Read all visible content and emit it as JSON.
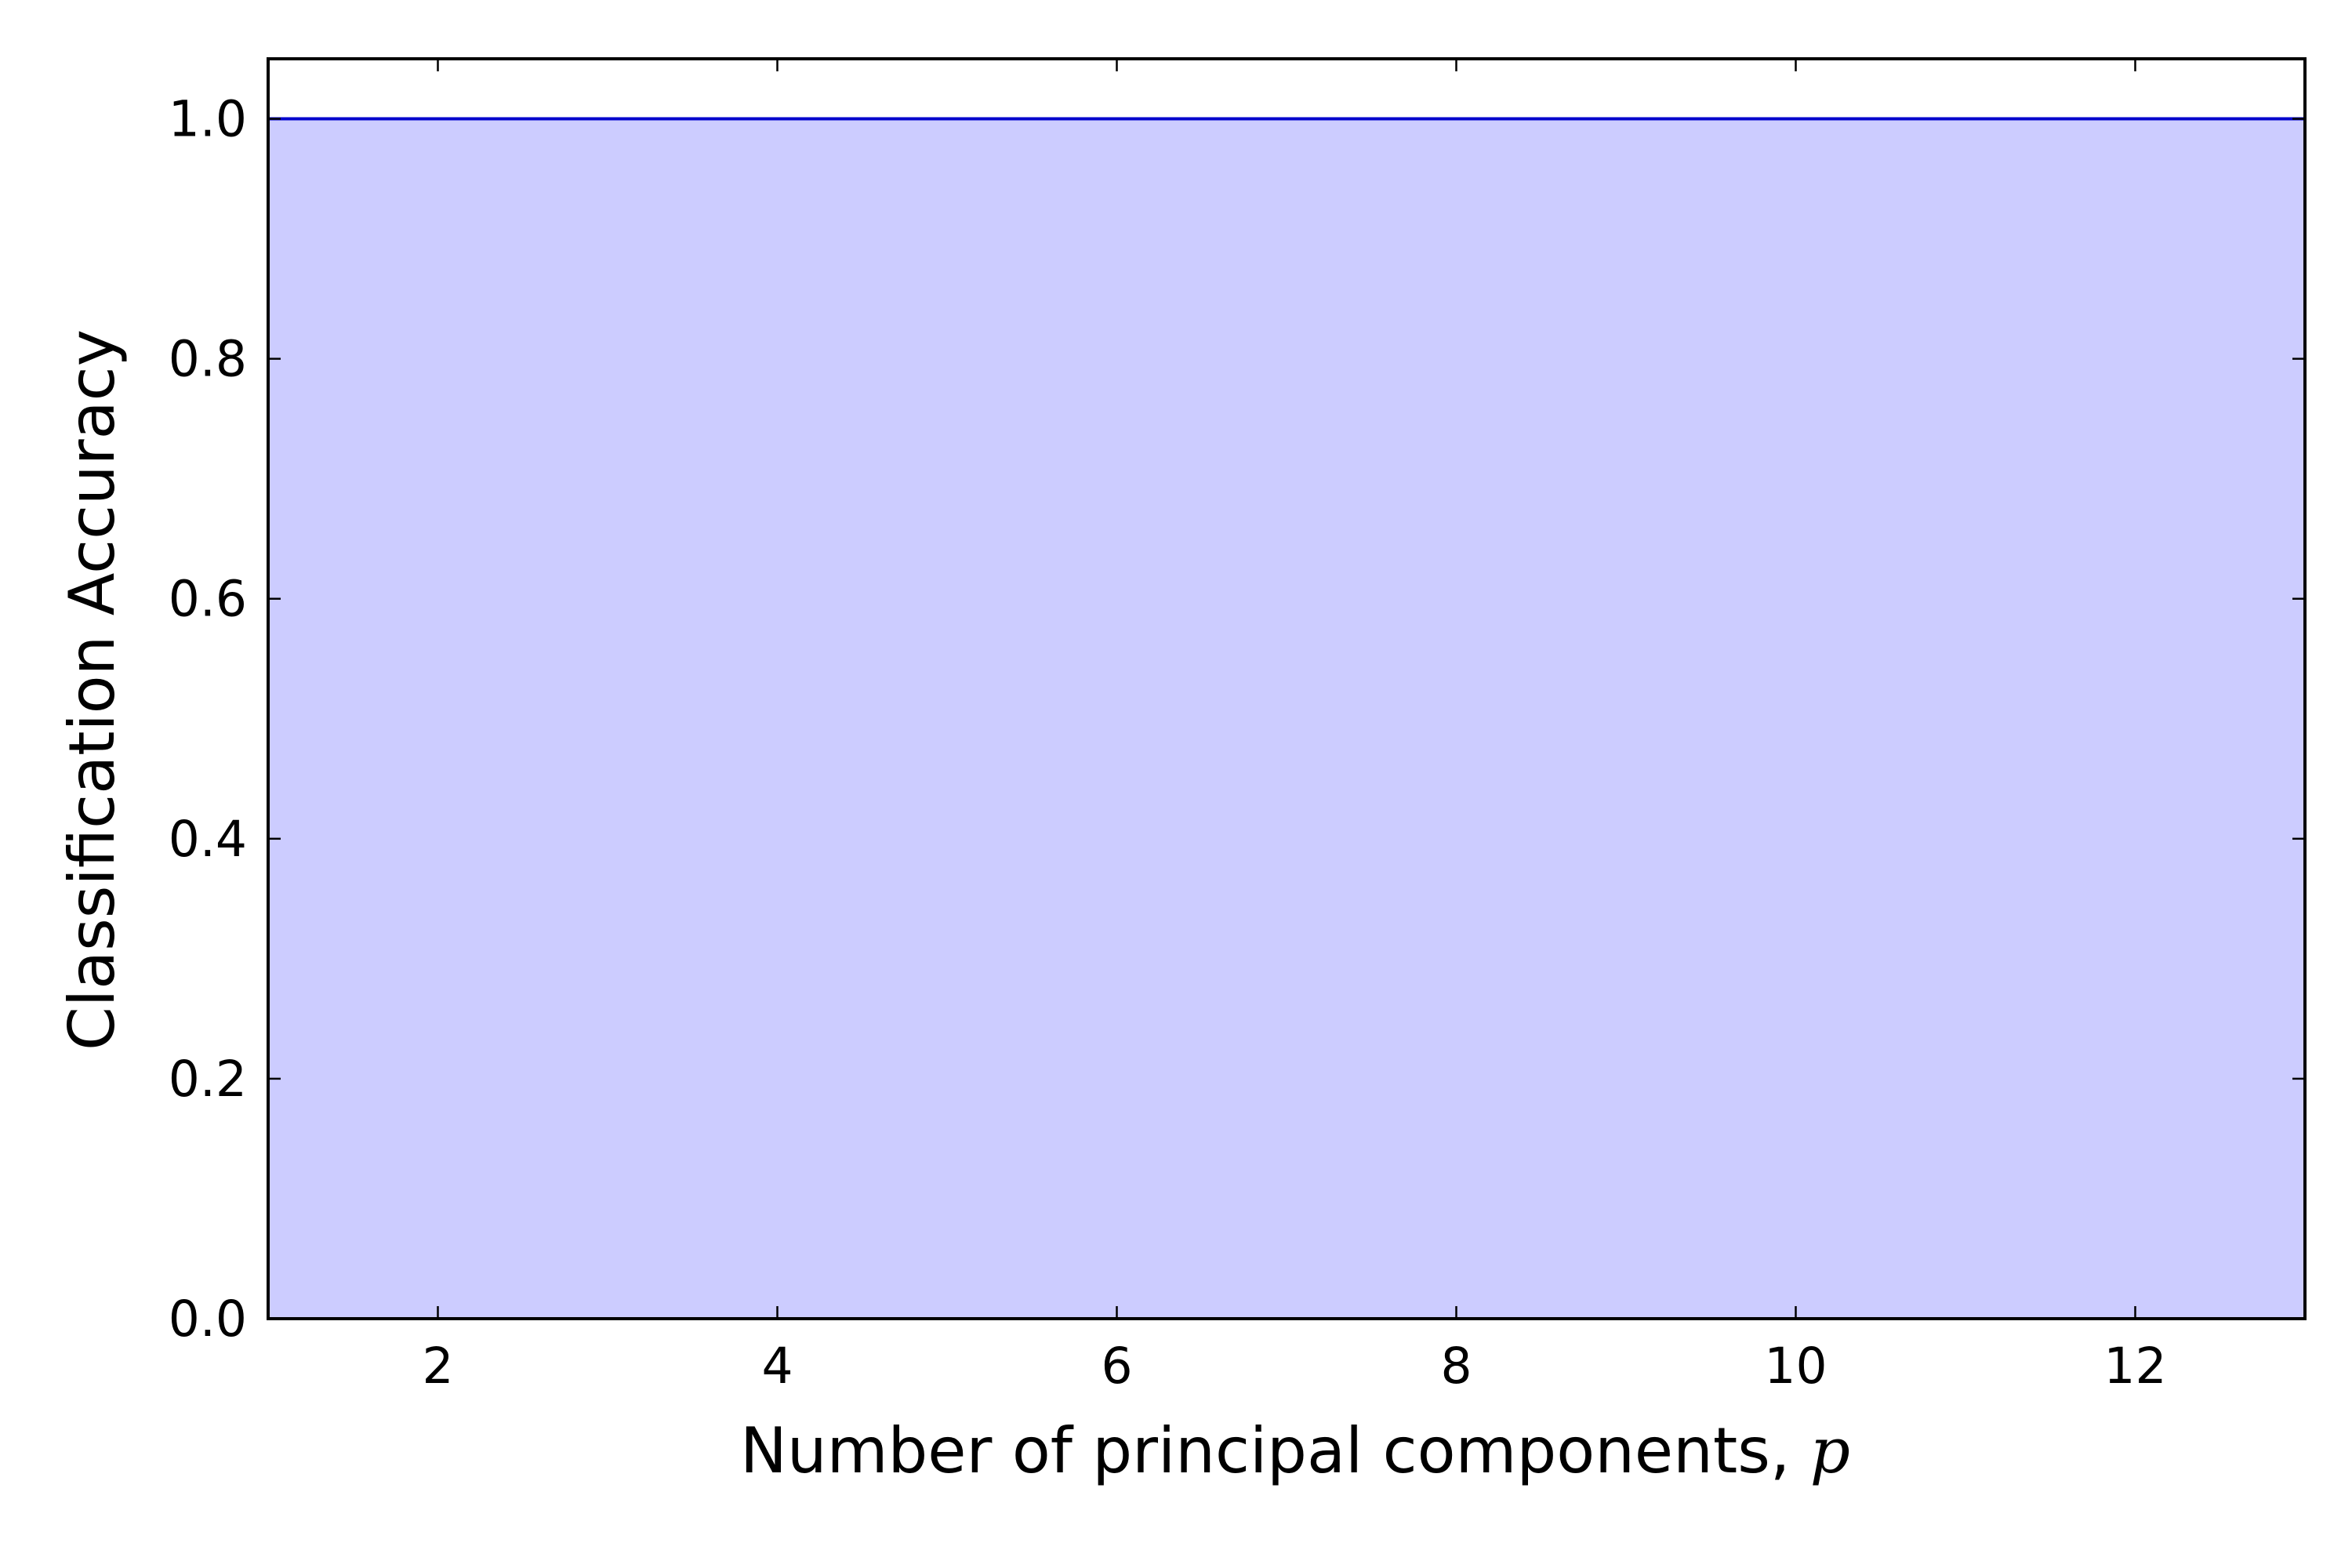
{
  "chart_data": {
    "type": "area",
    "title": "",
    "xlabel": "Number of principal components, ",
    "xlabel_var": "p",
    "ylabel": "Classification Accuracy",
    "xlim": [
      1,
      13
    ],
    "ylim": [
      0,
      1.05
    ],
    "x_ticks": [
      2,
      4,
      6,
      8,
      10,
      12
    ],
    "y_ticks": [
      0.0,
      0.2,
      0.4,
      0.6,
      0.8,
      1.0
    ],
    "y_tick_labels": [
      "0.0",
      "0.2",
      "0.4",
      "0.6",
      "0.8",
      "1.0"
    ],
    "grid": false,
    "legend": "none",
    "series": [
      {
        "x": [
          1,
          2,
          3,
          4,
          5,
          6,
          7,
          8,
          9,
          10,
          11,
          12,
          13
        ],
        "values": [
          1.0,
          1.0,
          1.0,
          1.0,
          1.0,
          1.0,
          1.0,
          1.0,
          1.0,
          1.0,
          1.0,
          1.0,
          1.0
        ],
        "line_color": "#0000cc",
        "fill_color": "#ccccff"
      }
    ]
  }
}
